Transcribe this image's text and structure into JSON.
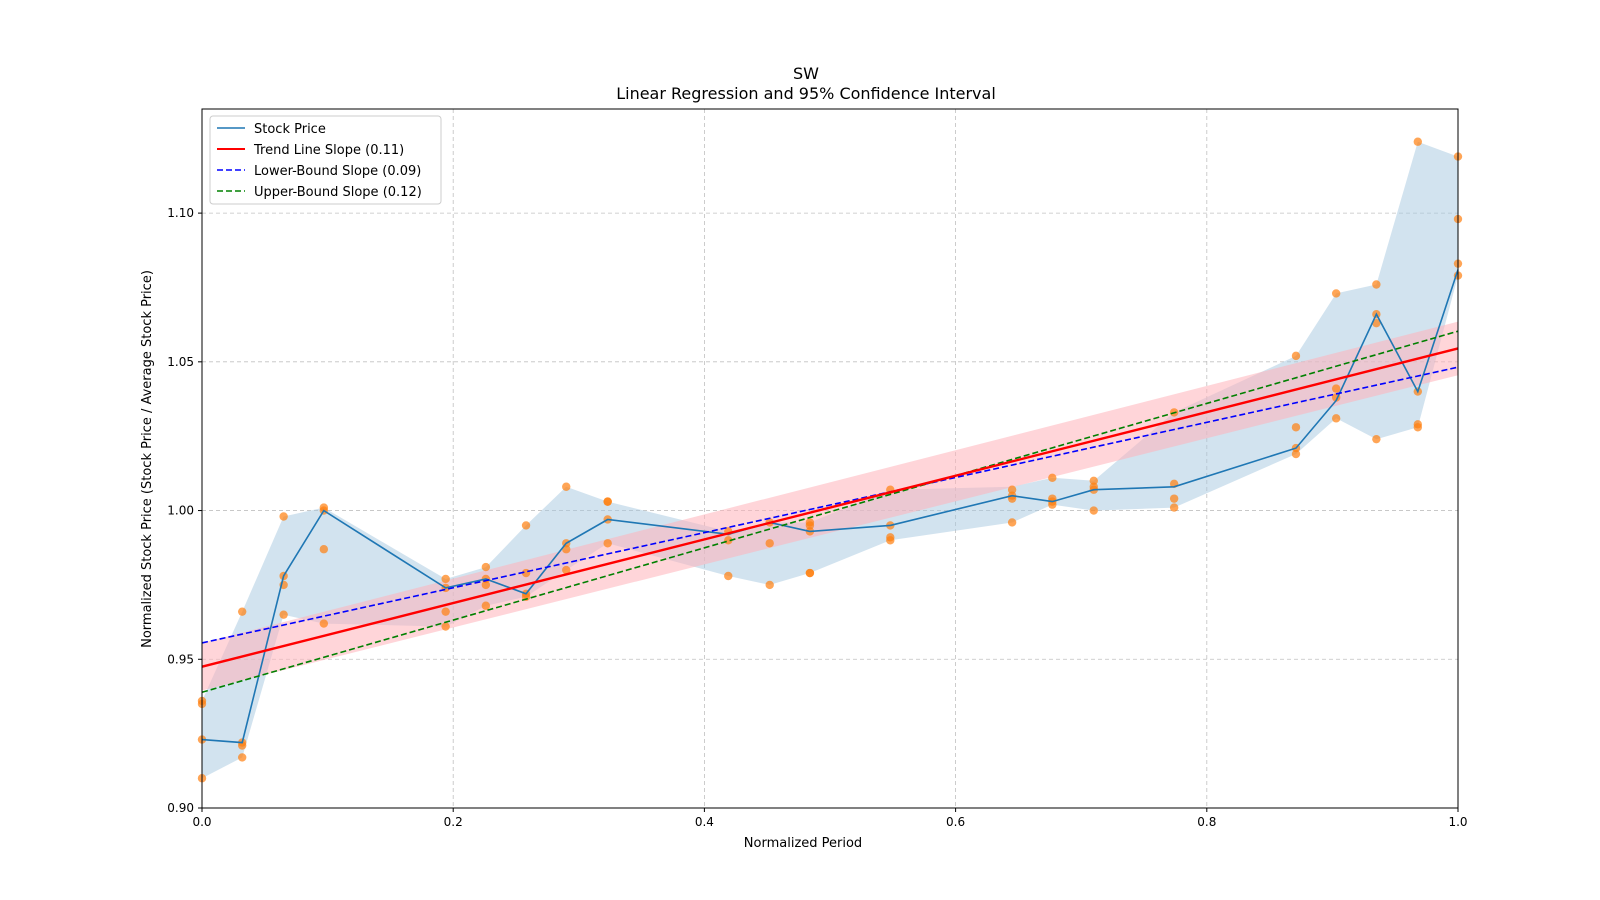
{
  "chart_data": {
    "type": "line",
    "title": "SW",
    "subtitle": "Linear Regression and 95% Confidence Interval",
    "xlabel": "Normalized Period",
    "ylabel": "Normalized Stock Price (Stock Price / Average Stock Price)",
    "xlim": [
      0.0,
      1.0
    ],
    "ylim": [
      0.9,
      1.135
    ],
    "x_ticks": [
      {
        "v": 0.0,
        "label": "0.0"
      },
      {
        "v": 0.2,
        "label": "0.2"
      },
      {
        "v": 0.4,
        "label": "0.4"
      },
      {
        "v": 0.6,
        "label": "0.6"
      },
      {
        "v": 0.8,
        "label": "0.8"
      },
      {
        "v": 1.0,
        "label": "1.0"
      }
    ],
    "y_ticks": [
      {
        "v": 0.9,
        "label": "0.90"
      },
      {
        "v": 0.95,
        "label": "0.95"
      },
      {
        "v": 1.0,
        "label": "1.00"
      },
      {
        "v": 1.05,
        "label": "1.05"
      },
      {
        "v": 1.1,
        "label": "1.10"
      }
    ],
    "grid": true,
    "legend_position": "top-left",
    "colors": {
      "stock": "#1f77b4",
      "band": "#a6c8e0",
      "trend": "#ff0000",
      "trend_ci": "#ffb3ba",
      "lower": "#0000ff",
      "upper": "#008000",
      "points": "#ff7f0e",
      "grid": "#b0b0b0"
    },
    "stock_price": {
      "name": "Stock Price",
      "x": [
        0.0,
        0.032,
        0.065,
        0.097,
        0.194,
        0.226,
        0.258,
        0.29,
        0.323,
        0.419,
        0.452,
        0.484,
        0.548,
        0.645,
        0.677,
        0.71,
        0.774,
        0.871,
        0.903,
        0.935,
        0.968,
        1.0
      ],
      "y": [
        0.923,
        0.922,
        0.978,
        1.0,
        0.974,
        0.977,
        0.972,
        0.989,
        0.997,
        0.992,
        0.996,
        0.993,
        0.995,
        1.005,
        1.003,
        1.007,
        1.008,
        1.021,
        1.037,
        1.066,
        1.04,
        1.081
      ]
    },
    "stock_band": {
      "x": [
        0.0,
        0.032,
        0.065,
        0.097,
        0.194,
        0.226,
        0.258,
        0.29,
        0.323,
        0.419,
        0.452,
        0.484,
        0.548,
        0.645,
        0.677,
        0.71,
        0.774,
        0.871,
        0.903,
        0.935,
        0.968,
        1.0
      ],
      "upper": [
        0.936,
        0.966,
        0.998,
        1.001,
        0.977,
        0.981,
        0.995,
        1.008,
        1.003,
        0.993,
        0.996,
        0.996,
        1.007,
        1.008,
        1.011,
        1.01,
        1.033,
        1.052,
        1.073,
        1.076,
        1.124,
        1.119
      ],
      "lower": [
        0.91,
        0.917,
        0.965,
        0.962,
        0.961,
        0.968,
        0.971,
        0.98,
        0.989,
        0.978,
        0.975,
        0.979,
        0.99,
        0.996,
        1.002,
        1.0,
        1.001,
        1.019,
        1.031,
        1.024,
        1.028,
        1.079
      ]
    },
    "trend_line": {
      "name": "Trend Line Slope (0.11)",
      "slope": 0.11,
      "y_start": 0.9475,
      "y_end": 1.0545
    },
    "trend_ci": {
      "upper_start": 0.9555,
      "upper_end": 1.0635,
      "lower_start": 0.9395,
      "lower_end": 1.0455
    },
    "lower_bound": {
      "name": "Lower-Bound Slope (0.09)",
      "slope": 0.09,
      "y_start": 0.9555,
      "y_end": 1.0482
    },
    "upper_bound": {
      "name": "Upper-Bound Slope (0.12)",
      "slope": 0.12,
      "y_start": 0.9389,
      "y_end": 1.0603
    },
    "scatter_points": [
      [
        0.0,
        0.936
      ],
      [
        0.0,
        0.935
      ],
      [
        0.0,
        0.923
      ],
      [
        0.0,
        0.91
      ],
      [
        0.032,
        0.966
      ],
      [
        0.032,
        0.922
      ],
      [
        0.032,
        0.921
      ],
      [
        0.032,
        0.917
      ],
      [
        0.065,
        0.998
      ],
      [
        0.065,
        0.978
      ],
      [
        0.065,
        0.975
      ],
      [
        0.065,
        0.965
      ],
      [
        0.097,
        1.001
      ],
      [
        0.097,
        1.0
      ],
      [
        0.097,
        0.987
      ],
      [
        0.097,
        0.962
      ],
      [
        0.194,
        0.977
      ],
      [
        0.194,
        0.974
      ],
      [
        0.194,
        0.966
      ],
      [
        0.194,
        0.961
      ],
      [
        0.226,
        0.981
      ],
      [
        0.226,
        0.977
      ],
      [
        0.226,
        0.975
      ],
      [
        0.226,
        0.968
      ],
      [
        0.258,
        0.995
      ],
      [
        0.258,
        0.979
      ],
      [
        0.258,
        0.972
      ],
      [
        0.258,
        0.971
      ],
      [
        0.29,
        1.008
      ],
      [
        0.29,
        0.989
      ],
      [
        0.29,
        0.987
      ],
      [
        0.29,
        0.98
      ],
      [
        0.323,
        1.003
      ],
      [
        0.323,
        1.003
      ],
      [
        0.323,
        0.997
      ],
      [
        0.323,
        0.989
      ],
      [
        0.419,
        0.993
      ],
      [
        0.419,
        0.99
      ],
      [
        0.419,
        0.978
      ],
      [
        0.452,
        0.996
      ],
      [
        0.452,
        0.989
      ],
      [
        0.452,
        0.975
      ],
      [
        0.484,
        0.996
      ],
      [
        0.484,
        0.995
      ],
      [
        0.484,
        0.993
      ],
      [
        0.484,
        0.979
      ],
      [
        0.484,
        0.979
      ],
      [
        0.548,
        1.007
      ],
      [
        0.548,
        0.995
      ],
      [
        0.548,
        0.991
      ],
      [
        0.548,
        0.99
      ],
      [
        0.645,
        1.007
      ],
      [
        0.645,
        1.005
      ],
      [
        0.645,
        1.004
      ],
      [
        0.645,
        0.996
      ],
      [
        0.677,
        1.011
      ],
      [
        0.677,
        1.004
      ],
      [
        0.677,
        1.003
      ],
      [
        0.677,
        1.002
      ],
      [
        0.71,
        1.01
      ],
      [
        0.71,
        1.008
      ],
      [
        0.71,
        1.007
      ],
      [
        0.71,
        1.0
      ],
      [
        0.774,
        1.033
      ],
      [
        0.774,
        1.009
      ],
      [
        0.774,
        1.004
      ],
      [
        0.774,
        1.001
      ],
      [
        0.871,
        1.052
      ],
      [
        0.871,
        1.028
      ],
      [
        0.871,
        1.021
      ],
      [
        0.871,
        1.019
      ],
      [
        0.903,
        1.073
      ],
      [
        0.903,
        1.041
      ],
      [
        0.903,
        1.038
      ],
      [
        0.903,
        1.031
      ],
      [
        0.935,
        1.076
      ],
      [
        0.935,
        1.066
      ],
      [
        0.935,
        1.063
      ],
      [
        0.935,
        1.024
      ],
      [
        0.968,
        1.124
      ],
      [
        0.968,
        1.04
      ],
      [
        0.968,
        1.029
      ],
      [
        0.968,
        1.028
      ],
      [
        1.0,
        1.119
      ],
      [
        1.0,
        1.098
      ],
      [
        1.0,
        1.083
      ],
      [
        1.0,
        1.079
      ]
    ]
  }
}
